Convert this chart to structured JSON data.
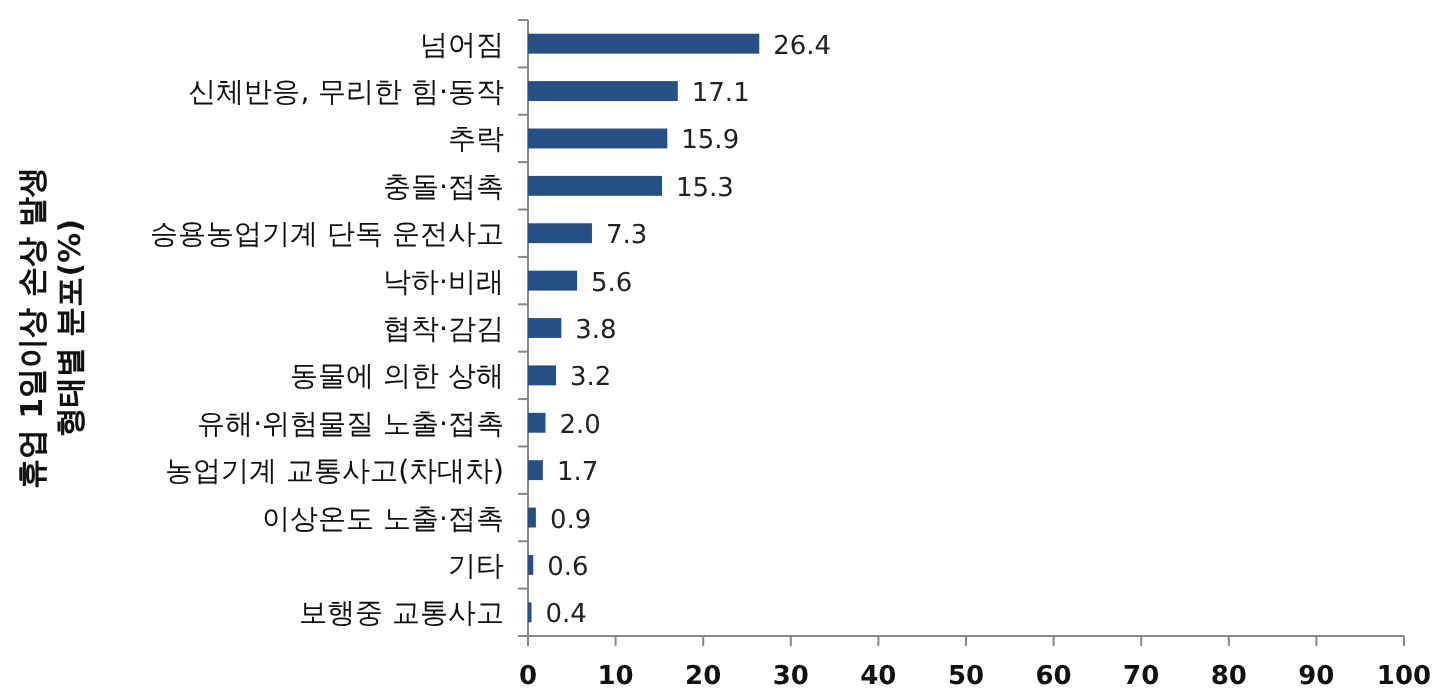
{
  "chart_data": {
    "type": "bar",
    "orientation": "horizontal",
    "ylabel": "휴업 1일이상 손상 발생 형태별 분포(%)",
    "categories": [
      "넘어짐",
      "신체반응, 무리한 힘·동작",
      "추락",
      "충돌·접촉",
      "승용농업기계 단독 운전사고",
      "낙하·비래",
      "협착·감김",
      "동물에 의한 상해",
      "유해·위험물질 노출·접촉",
      "농업기계 교통사고(차대차)",
      "이상온도 노출·접촉",
      "기타",
      "보행중 교통사고"
    ],
    "values": [
      26.4,
      17.1,
      15.9,
      15.3,
      7.3,
      5.6,
      3.8,
      3.2,
      2.0,
      1.7,
      0.9,
      0.6,
      0.4
    ],
    "value_labels": [
      "26.4",
      "17.1",
      "15.9",
      "15.3",
      "7.3",
      "5.6",
      "3.8",
      "3.2",
      "2.0",
      "1.7",
      "0.9",
      "0.6",
      "0.4"
    ],
    "color": "#254f85",
    "xlim": [
      0,
      100
    ],
    "xticks": [
      0,
      10,
      20,
      30,
      40,
      50,
      60,
      70,
      80,
      90,
      100
    ]
  }
}
